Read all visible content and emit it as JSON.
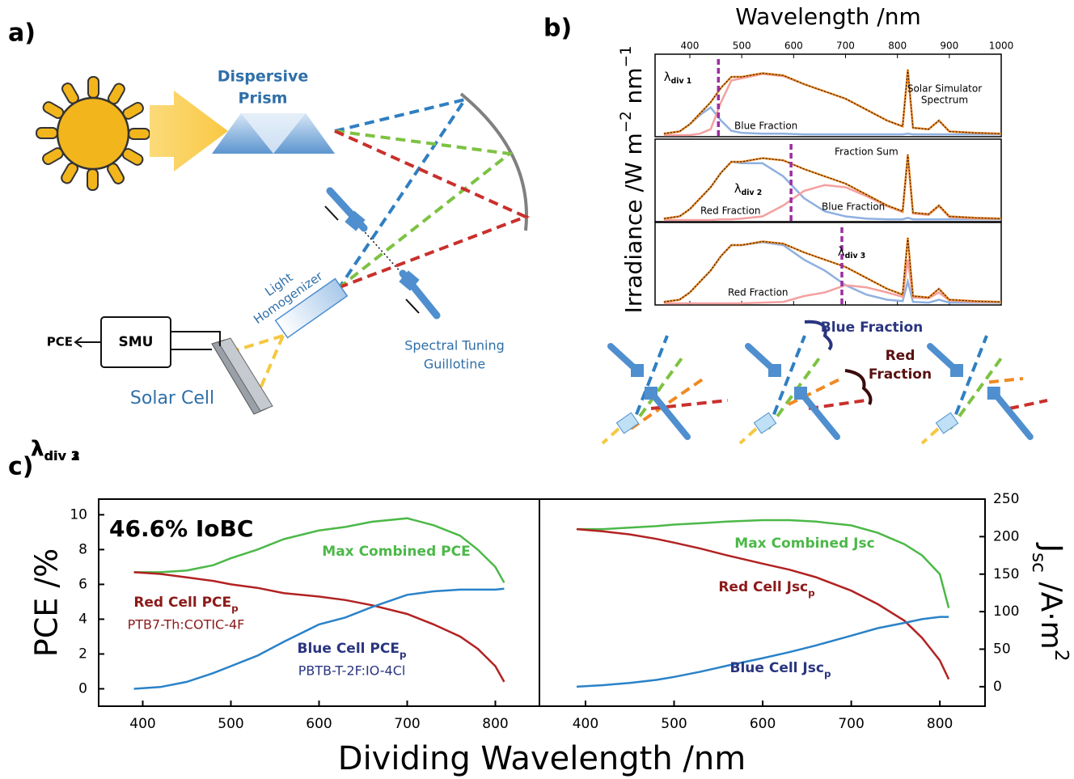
{
  "panel_labels": [
    "a)",
    "b)",
    "c)"
  ],
  "diagram": {
    "prism": [
      "Dispersive",
      "Prism"
    ],
    "homogenizer": [
      "Light",
      "Homogenizer"
    ],
    "guillotine": [
      "Spectral Tuning",
      "Guillotine"
    ],
    "smu": "SMU",
    "output": "PCE",
    "solar_cell": "Solar Cell",
    "schematics": {
      "blue_fraction": "Blue Fraction",
      "red_fraction": [
        "Red",
        "Fraction"
      ],
      "dividers": [
        {
          "base": "λ",
          "sub": "div 1"
        },
        {
          "base": "λ",
          "sub": "div 2"
        },
        {
          "base": "λ",
          "sub": "div 3"
        }
      ]
    }
  },
  "chart_data": [
    {
      "type": "spectrum",
      "xlabel": "Wavelength /nm",
      "ylabel_parts": [
        {
          "text": "Irradiance /W m"
        },
        {
          "sup": "−2"
        },
        {
          "text": " nm"
        },
        {
          "sup": "−1"
        }
      ],
      "x": [
        350,
        380,
        400,
        420,
        440,
        460,
        480,
        500,
        540,
        580,
        620,
        660,
        700,
        740,
        780,
        810,
        820,
        830,
        860,
        880,
        900,
        950,
        1000
      ],
      "xlim": [
        333,
        1000
      ],
      "xticks": [
        400,
        500,
        600,
        700,
        800,
        900,
        1000
      ],
      "ylim": [
        0,
        1
      ],
      "spectrum": {
        "color": "#f08a24",
        "values": [
          0.02,
          0.05,
          0.15,
          0.3,
          0.45,
          0.65,
          0.8,
          0.8,
          0.85,
          0.82,
          0.7,
          0.6,
          0.5,
          0.35,
          0.2,
          0.12,
          0.9,
          0.1,
          0.08,
          0.2,
          0.05,
          0.03,
          0.02
        ]
      },
      "panels": [
        {
          "divider": 455,
          "divider_color": "#9b2fa0",
          "divider_label": {
            "base": "λ",
            "sub": "div 1"
          },
          "series": [
            {
              "color": "#8fb0e0",
              "values": [
                0.02,
                0.05,
                0.15,
                0.28,
                0.38,
                0.2,
                0.06,
                0.03,
                0.02,
                0.02,
                0.01,
                0.01,
                0.01,
                0.01,
                0.01,
                0.01,
                0.02,
                0.01,
                0.01,
                0.01,
                0.01,
                0.01,
                0.01
              ]
            },
            {
              "color": "#f4a0a0",
              "values": [
                0,
                0,
                0,
                0.02,
                0.08,
                0.45,
                0.75,
                0.78,
                0.84,
                0.81,
                0.7,
                0.6,
                0.5,
                0.35,
                0.2,
                0.12,
                0.88,
                0.1,
                0.08,
                0.2,
                0.05,
                0.03,
                0.02
              ]
            }
          ],
          "annotations": [
            [
              "Solar Simulator",
              "Spectrum"
            ],
            [
              "Blue Fraction"
            ]
          ]
        },
        {
          "divider": 595,
          "divider_color": "#9b2fa0",
          "divider_label": {
            "base": "λ",
            "sub": "div 2"
          },
          "series": [
            {
              "color": "#8fb0e0",
              "values": [
                0.02,
                0.05,
                0.15,
                0.3,
                0.45,
                0.65,
                0.8,
                0.78,
                0.78,
                0.6,
                0.3,
                0.12,
                0.05,
                0.02,
                0.01,
                0.01,
                0.03,
                0.01,
                0.01,
                0.01,
                0.01,
                0.01,
                0.01
              ]
            },
            {
              "color": "#f4a0a0",
              "values": [
                0,
                0,
                0,
                0,
                0,
                0.01,
                0.01,
                0.02,
                0.05,
                0.2,
                0.4,
                0.48,
                0.45,
                0.33,
                0.19,
                0.11,
                0.87,
                0.09,
                0.07,
                0.19,
                0.04,
                0.02,
                0.02
              ]
            }
          ],
          "annotations": [
            [
              "Fraction Sum"
            ],
            [
              "Red Fraction"
            ],
            [
              "Blue Fraction"
            ]
          ]
        },
        {
          "divider": 693,
          "divider_color": "#9b2fa0",
          "divider_label": {
            "base": "λ",
            "sub": "div 3"
          },
          "series": [
            {
              "color": "#8fb0e0",
              "values": [
                0.02,
                0.05,
                0.15,
                0.3,
                0.45,
                0.65,
                0.8,
                0.8,
                0.84,
                0.8,
                0.6,
                0.45,
                0.25,
                0.12,
                0.05,
                0.03,
                0.3,
                0.02,
                0.01,
                0.05,
                0.01,
                0.01,
                0.01
              ]
            },
            {
              "color": "#f4a0a0",
              "values": [
                0,
                0,
                0,
                0,
                0,
                0,
                0,
                0,
                0.01,
                0.02,
                0.1,
                0.15,
                0.25,
                0.22,
                0.15,
                0.09,
                0.6,
                0.08,
                0.07,
                0.15,
                0.04,
                0.02,
                0.02
              ]
            }
          ],
          "annotations": [
            [
              "Red Fraction"
            ]
          ]
        }
      ]
    },
    {
      "type": "line",
      "xlabel": "Dividing Wavelength /nm",
      "ylabel": "PCE /%",
      "annotation": "46.6% IoBC",
      "x": [
        390,
        420,
        450,
        480,
        500,
        530,
        560,
        600,
        630,
        660,
        700,
        730,
        760,
        780,
        800,
        810
      ],
      "xlim": [
        350,
        850
      ],
      "xticks": [
        400,
        500,
        600,
        700,
        800
      ],
      "ylim": [
        -1,
        10.9
      ],
      "yticks": [
        0,
        2,
        4,
        6,
        8,
        10
      ],
      "series": [
        {
          "label": [
            "Max Combined PCE"
          ],
          "color": "#4cb848",
          "values": [
            6.7,
            6.7,
            6.8,
            7.1,
            7.5,
            8.0,
            8.6,
            9.1,
            9.3,
            9.6,
            9.8,
            9.4,
            8.8,
            8.0,
            7.0,
            6.1
          ]
        },
        {
          "label": [
            "Red Cell PCE",
            "p"
          ],
          "note": "PTB7-Th:COTIC-4F",
          "color": "#b22222",
          "values": [
            6.7,
            6.6,
            6.4,
            6.2,
            6.0,
            5.8,
            5.5,
            5.3,
            5.1,
            4.8,
            4.3,
            3.7,
            3.0,
            2.3,
            1.3,
            0.4
          ]
        },
        {
          "label": [
            "Blue Cell PCE",
            "p"
          ],
          "note": "PBTB-T-2F:IO-4Cl",
          "color": "#2a82c8",
          "values": [
            0,
            0.1,
            0.4,
            0.9,
            1.3,
            1.9,
            2.7,
            3.7,
            4.1,
            4.7,
            5.4,
            5.6,
            5.7,
            5.7,
            5.7,
            5.75
          ]
        }
      ]
    },
    {
      "type": "line",
      "ylabel_parts": [
        {
          "text": "J"
        },
        {
          "sub": "sc"
        },
        {
          "text": " /A·m"
        },
        {
          "sup": "2"
        }
      ],
      "x": [
        390,
        420,
        450,
        480,
        500,
        530,
        560,
        600,
        630,
        660,
        700,
        730,
        760,
        780,
        800,
        810
      ],
      "xlim": [
        348,
        851
      ],
      "xticks": [
        400,
        500,
        600,
        700,
        800
      ],
      "ylim": [
        -26,
        250
      ],
      "yticks": [
        0,
        50,
        100,
        150,
        200,
        250
      ],
      "series": [
        {
          "label": [
            "Max Combined Jsc"
          ],
          "color": "#4cb848",
          "values": [
            210,
            210,
            212,
            214,
            216,
            218,
            220,
            222,
            222,
            220,
            215,
            205,
            190,
            175,
            150,
            105
          ]
        },
        {
          "label": [
            "Red Cell Jsc",
            "p"
          ],
          "color": "#b22222",
          "values": [
            210,
            207,
            203,
            197,
            192,
            184,
            175,
            164,
            156,
            146,
            128,
            110,
            88,
            65,
            35,
            10
          ]
        },
        {
          "label": [
            "Blue Cell Jsc",
            "p"
          ],
          "color": "#2a82c8",
          "values": [
            0,
            2,
            5,
            9,
            13,
            20,
            28,
            38,
            46,
            55,
            68,
            78,
            85,
            90,
            93,
            93
          ]
        }
      ]
    }
  ]
}
